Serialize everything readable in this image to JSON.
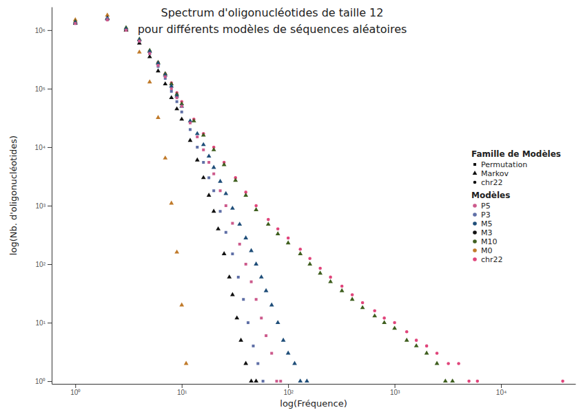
{
  "chart_data": {
    "type": "scatter",
    "title": [
      "Spectrum d'oligonucléotides de taille 12",
      "pour différents modèles de séquences aléatoires"
    ],
    "x_label": "log(Fréquence)",
    "y_label": "log(Nb. d'oligonucléotides)",
    "log": true,
    "grid": false,
    "legend": "right",
    "xlim": [
      0.6,
      50000
    ],
    "ylim": [
      0.9,
      2500000
    ],
    "xticks": [
      {
        "value": 1,
        "label": "10⁰"
      },
      {
        "value": 10,
        "label": "10¹"
      },
      {
        "value": 100,
        "label": "10²"
      },
      {
        "value": 1000,
        "label": "10³"
      },
      {
        "value": 10000,
        "label": "10⁴"
      }
    ],
    "yticks": [
      {
        "value": 1,
        "label": "10⁰"
      },
      {
        "value": 10,
        "label": "10¹"
      },
      {
        "value": 100,
        "label": "10²"
      },
      {
        "value": 1000,
        "label": "10³"
      },
      {
        "value": 10000,
        "label": "10⁴"
      },
      {
        "value": 100000,
        "label": "10⁵"
      },
      {
        "value": 1000000,
        "label": "10⁶"
      }
    ],
    "legend_titles": [
      "Famille de Modèles",
      "Modèles"
    ],
    "families": [
      {
        "name": "Permutation",
        "marker": "square"
      },
      {
        "name": "Markov",
        "marker": "triangle"
      },
      {
        "name": "chr22",
        "marker": "circle"
      }
    ],
    "series": [
      {
        "name": "P5",
        "color": "#cc5a8c",
        "marker": "square",
        "x": [
          1,
          2,
          3,
          4,
          5,
          6,
          7,
          8,
          9,
          10,
          12,
          14,
          16,
          18,
          20,
          23,
          26,
          30,
          35,
          40,
          45,
          50,
          56,
          62,
          70,
          78,
          85
        ],
        "values": [
          1300000,
          1500000,
          1000000,
          650000,
          400000,
          250000,
          160000,
          100000,
          70000,
          50000,
          26000,
          15000,
          9000,
          5500,
          3500,
          1800,
          1000,
          500,
          220,
          100,
          50,
          25,
          12,
          6,
          3,
          1,
          1
        ]
      },
      {
        "name": "P3",
        "color": "#5f6fa6",
        "marker": "square",
        "x": [
          1,
          2,
          3,
          4,
          5,
          6,
          7,
          8,
          9,
          10,
          12,
          14,
          16,
          18,
          20,
          23,
          26,
          30,
          34,
          38,
          42,
          47,
          52,
          58
        ],
        "values": [
          1300000,
          1600000,
          1000000,
          650000,
          400000,
          240000,
          150000,
          90000,
          60000,
          40000,
          20000,
          10000,
          5500,
          3000,
          1800,
          800,
          350,
          150,
          60,
          25,
          10,
          4,
          2,
          1
        ]
      },
      {
        "name": "M5",
        "color": "#1f4e79",
        "marker": "triangle",
        "x": [
          1,
          2,
          3,
          4,
          5,
          6,
          7,
          8,
          9,
          10,
          12,
          14,
          16,
          18,
          20,
          23,
          26,
          30,
          35,
          40,
          45,
          50,
          56,
          62,
          70,
          80,
          90,
          100,
          115,
          130,
          150
        ],
        "values": [
          1350000,
          1550000,
          1050000,
          680000,
          430000,
          270000,
          170000,
          110000,
          75000,
          50000,
          28000,
          17000,
          11000,
          7000,
          4500,
          2600,
          1600,
          900,
          480,
          280,
          170,
          100,
          60,
          35,
          20,
          10,
          5,
          3,
          2,
          1,
          1
        ]
      },
      {
        "name": "M3",
        "color": "#111111",
        "marker": "triangle",
        "x": [
          1,
          2,
          3,
          4,
          5,
          6,
          7,
          8,
          9,
          10,
          12,
          14,
          16,
          18,
          20,
          22,
          25,
          28,
          30,
          33,
          36,
          40,
          45,
          50
        ],
        "values": [
          1300000,
          1600000,
          1000000,
          600000,
          350000,
          200000,
          120000,
          70000,
          45000,
          30000,
          13000,
          6000,
          3000,
          1500,
          800,
          400,
          150,
          60,
          30,
          12,
          5,
          2,
          1,
          1
        ]
      },
      {
        "name": "M10",
        "color": "#3f5f1f",
        "marker": "triangle",
        "x": [
          1,
          2,
          3,
          4,
          5,
          6,
          7,
          8,
          9,
          10,
          13,
          16,
          20,
          25,
          32,
          40,
          50,
          65,
          80,
          100,
          130,
          160,
          200,
          250,
          320,
          400,
          500,
          650,
          800,
          1000,
          1300,
          1600,
          2000,
          2500,
          3000,
          3500
        ],
        "values": [
          1400000,
          1600000,
          1100000,
          700000,
          450000,
          280000,
          180000,
          120000,
          80000,
          55000,
          28000,
          16000,
          9000,
          5000,
          2700,
          1500,
          850,
          480,
          330,
          230,
          150,
          100,
          70,
          50,
          35,
          25,
          18,
          13,
          10,
          8,
          5,
          4,
          3,
          2,
          1,
          1
        ]
      },
      {
        "name": "M0",
        "color": "#c07a2a",
        "marker": "triangle",
        "x": [
          1,
          2,
          3,
          4,
          5,
          6,
          7,
          8,
          9,
          10,
          11
        ],
        "values": [
          1500000,
          1800000,
          1000000,
          420000,
          130000,
          32000,
          6500,
          1100,
          160,
          20,
          2
        ]
      },
      {
        "name": "chr22",
        "color": "#e0457b",
        "marker": "circle",
        "x": [
          1,
          2,
          3,
          4,
          5,
          6,
          7,
          8,
          9,
          10,
          13,
          16,
          20,
          25,
          32,
          40,
          50,
          65,
          80,
          100,
          130,
          160,
          200,
          250,
          320,
          400,
          500,
          650,
          800,
          1000,
          1300,
          1600,
          2000,
          2500,
          3200,
          4000,
          5000,
          6000,
          38000
        ],
        "values": [
          1400000,
          1500000,
          1000000,
          650000,
          430000,
          280000,
          180000,
          125000,
          85000,
          60000,
          30000,
          17000,
          10000,
          5500,
          3000,
          1700,
          1000,
          580,
          400,
          280,
          180,
          125,
          85,
          60,
          42,
          30,
          22,
          16,
          12,
          10,
          7,
          5,
          4,
          3,
          2,
          2,
          1,
          1,
          1
        ]
      }
    ]
  }
}
